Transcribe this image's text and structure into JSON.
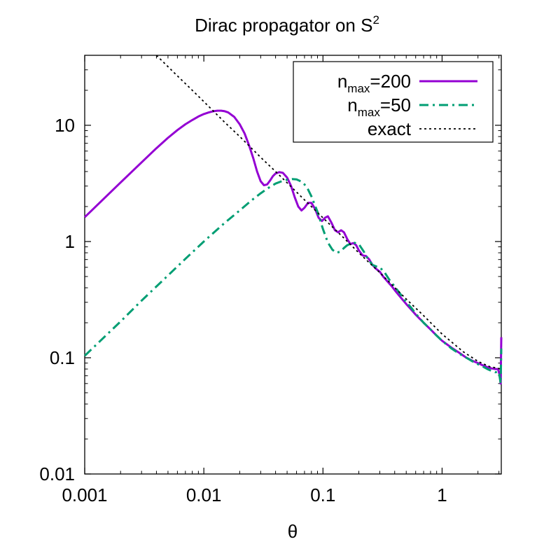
{
  "chart_data": {
    "type": "line",
    "title_main": "Dirac propagator on S",
    "title_sup": "2",
    "xlabel": "θ",
    "ylabel": "",
    "x_scale": "log",
    "y_scale": "log",
    "xlim": [
      0.001,
      3.14
    ],
    "ylim": [
      0.01,
      40
    ],
    "x_ticks": [
      {
        "value": 0.001,
        "label": "0.001"
      },
      {
        "value": 0.01,
        "label": "0.01"
      },
      {
        "value": 0.1,
        "label": "0.1"
      },
      {
        "value": 1,
        "label": "1"
      }
    ],
    "y_ticks": [
      {
        "value": 0.01,
        "label": "0.01"
      },
      {
        "value": 0.1,
        "label": "0.1"
      },
      {
        "value": 1,
        "label": "1"
      },
      {
        "value": 10,
        "label": "10"
      }
    ],
    "legend_position": "top-right",
    "series": [
      {
        "legend_base": "n",
        "legend_sub": "max",
        "legend_rest": "=200",
        "color": "#9400d3",
        "style": "solid",
        "points": [
          [
            0.001,
            1.62
          ],
          [
            0.0015,
            2.42
          ],
          [
            0.002,
            3.22
          ],
          [
            0.003,
            4.8
          ],
          [
            0.004,
            6.35
          ],
          [
            0.005,
            7.8
          ],
          [
            0.006,
            9.1
          ],
          [
            0.007,
            10.2
          ],
          [
            0.008,
            11.1
          ],
          [
            0.009,
            11.9
          ],
          [
            0.01,
            12.5
          ],
          [
            0.011,
            12.9
          ],
          [
            0.012,
            13.2
          ],
          [
            0.013,
            13.35
          ],
          [
            0.014,
            13.35
          ],
          [
            0.015,
            13.2
          ],
          [
            0.016,
            12.9
          ],
          [
            0.018,
            11.8
          ],
          [
            0.02,
            10.2
          ],
          [
            0.022,
            8.5
          ],
          [
            0.024,
            6.7
          ],
          [
            0.026,
            5.2
          ],
          [
            0.028,
            4.0
          ],
          [
            0.03,
            3.3
          ],
          [
            0.032,
            3.05
          ],
          [
            0.034,
            3.1
          ],
          [
            0.036,
            3.35
          ],
          [
            0.038,
            3.65
          ],
          [
            0.04,
            3.85
          ],
          [
            0.043,
            3.95
          ],
          [
            0.046,
            3.9
          ],
          [
            0.05,
            3.55
          ],
          [
            0.054,
            3.0
          ],
          [
            0.058,
            2.4
          ],
          [
            0.062,
            2.0
          ],
          [
            0.066,
            1.85
          ],
          [
            0.07,
            1.95
          ],
          [
            0.075,
            2.15
          ],
          [
            0.08,
            2.15
          ],
          [
            0.086,
            1.9
          ],
          [
            0.092,
            1.6
          ],
          [
            0.098,
            1.5
          ],
          [
            0.104,
            1.6
          ],
          [
            0.11,
            1.65
          ],
          [
            0.118,
            1.45
          ],
          [
            0.126,
            1.25
          ],
          [
            0.134,
            1.2
          ],
          [
            0.142,
            1.25
          ],
          [
            0.15,
            1.2
          ],
          [
            0.16,
            1.05
          ],
          [
            0.17,
            0.95
          ],
          [
            0.18,
            0.97
          ],
          [
            0.19,
            0.93
          ],
          [
            0.2,
            0.84
          ],
          [
            0.215,
            0.76
          ],
          [
            0.23,
            0.75
          ],
          [
            0.245,
            0.7
          ],
          [
            0.26,
            0.63
          ],
          [
            0.28,
            0.58
          ],
          [
            0.3,
            0.55
          ],
          [
            0.32,
            0.5
          ],
          [
            0.35,
            0.45
          ],
          [
            0.38,
            0.41
          ],
          [
            0.41,
            0.37
          ],
          [
            0.45,
            0.33
          ],
          [
            0.5,
            0.29
          ],
          [
            0.55,
            0.26
          ],
          [
            0.6,
            0.235
          ],
          [
            0.7,
            0.2
          ],
          [
            0.8,
            0.175
          ],
          [
            0.9,
            0.155
          ],
          [
            1.0,
            0.14
          ],
          [
            1.2,
            0.122
          ],
          [
            1.4,
            0.11
          ],
          [
            1.6,
            0.1
          ],
          [
            1.8,
            0.094
          ],
          [
            2.0,
            0.09
          ],
          [
            2.2,
            0.086
          ],
          [
            2.4,
            0.083
          ],
          [
            2.6,
            0.081
          ],
          [
            2.8,
            0.08
          ],
          [
            2.95,
            0.08
          ],
          [
            3.05,
            0.07
          ],
          [
            3.1,
            0.06
          ],
          [
            3.14,
            0.15
          ]
        ]
      },
      {
        "legend_base": "n",
        "legend_sub": "max",
        "legend_rest": "=50",
        "color": "#009e73",
        "style": "dashdot",
        "points": [
          [
            0.001,
            0.104
          ],
          [
            0.002,
            0.205
          ],
          [
            0.003,
            0.31
          ],
          [
            0.005,
            0.51
          ],
          [
            0.007,
            0.71
          ],
          [
            0.01,
            1.0
          ],
          [
            0.015,
            1.45
          ],
          [
            0.02,
            1.85
          ],
          [
            0.025,
            2.25
          ],
          [
            0.03,
            2.6
          ],
          [
            0.035,
            2.9
          ],
          [
            0.04,
            3.15
          ],
          [
            0.045,
            3.3
          ],
          [
            0.05,
            3.4
          ],
          [
            0.055,
            3.45
          ],
          [
            0.06,
            3.42
          ],
          [
            0.065,
            3.3
          ],
          [
            0.07,
            3.1
          ],
          [
            0.075,
            2.8
          ],
          [
            0.08,
            2.45
          ],
          [
            0.09,
            1.8
          ],
          [
            0.1,
            1.28
          ],
          [
            0.11,
            0.98
          ],
          [
            0.12,
            0.85
          ],
          [
            0.13,
            0.8
          ],
          [
            0.14,
            0.82
          ],
          [
            0.15,
            0.88
          ],
          [
            0.16,
            0.93
          ],
          [
            0.18,
            0.98
          ],
          [
            0.2,
            0.95
          ],
          [
            0.22,
            0.82
          ],
          [
            0.24,
            0.7
          ],
          [
            0.26,
            0.63
          ],
          [
            0.28,
            0.61
          ],
          [
            0.3,
            0.6
          ],
          [
            0.33,
            0.54
          ],
          [
            0.36,
            0.47
          ],
          [
            0.4,
            0.41
          ],
          [
            0.45,
            0.35
          ],
          [
            0.5,
            0.3
          ],
          [
            0.55,
            0.27
          ],
          [
            0.6,
            0.24
          ],
          [
            0.7,
            0.2
          ],
          [
            0.8,
            0.175
          ],
          [
            0.9,
            0.155
          ],
          [
            1.0,
            0.14
          ],
          [
            1.2,
            0.12
          ],
          [
            1.4,
            0.108
          ],
          [
            1.6,
            0.1
          ],
          [
            1.8,
            0.093
          ],
          [
            2.0,
            0.088
          ],
          [
            2.2,
            0.084
          ],
          [
            2.4,
            0.08
          ],
          [
            2.6,
            0.077
          ],
          [
            2.8,
            0.075
          ],
          [
            3.0,
            0.076
          ],
          [
            3.1,
            0.06
          ],
          [
            3.14,
            0.12
          ]
        ]
      },
      {
        "legend_base": "exact",
        "legend_sub": "",
        "legend_rest": "",
        "color": "#000000",
        "style": "dotted",
        "points": [
          [
            0.004,
            40
          ],
          [
            0.006,
            26.6
          ],
          [
            0.008,
            20
          ],
          [
            0.01,
            16
          ],
          [
            0.015,
            10.6
          ],
          [
            0.02,
            8.0
          ],
          [
            0.03,
            5.3
          ],
          [
            0.04,
            4.0
          ],
          [
            0.05,
            3.2
          ],
          [
            0.07,
            2.28
          ],
          [
            0.1,
            1.6
          ],
          [
            0.15,
            1.07
          ],
          [
            0.2,
            0.8
          ],
          [
            0.3,
            0.54
          ],
          [
            0.5,
            0.32
          ],
          [
            0.7,
            0.23
          ],
          [
            1.0,
            0.16
          ],
          [
            1.5,
            0.113
          ],
          [
            2.0,
            0.093
          ],
          [
            2.5,
            0.084
          ],
          [
            3.14,
            0.08
          ]
        ]
      }
    ]
  }
}
